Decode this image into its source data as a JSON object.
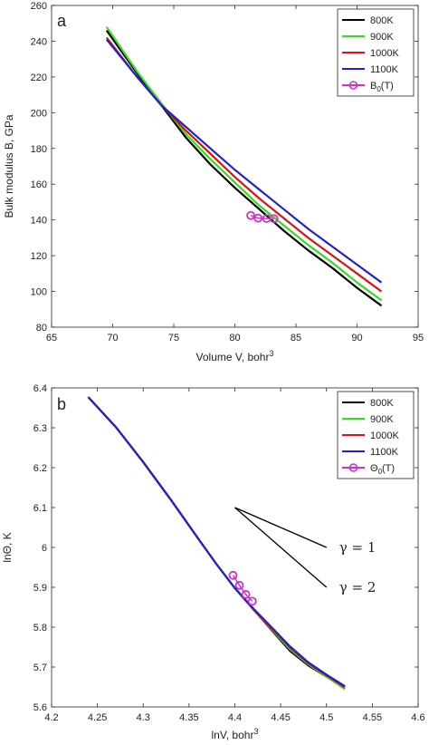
{
  "chart_data": [
    {
      "panel": "a",
      "type": "line",
      "xlabel": "Volume V, bohr",
      "xlabel_sup": "3",
      "ylabel": "Bulk modulus B, GPa",
      "xlim": [
        65,
        95
      ],
      "ylim": [
        80,
        260
      ],
      "xticks": [
        65,
        70,
        75,
        80,
        85,
        90,
        95
      ],
      "yticks": [
        80,
        100,
        120,
        140,
        160,
        180,
        200,
        220,
        240,
        260
      ],
      "grid": false,
      "legend_position": "top-right",
      "series": [
        {
          "name": "800K",
          "color": "#000000",
          "x": [
            69.5,
            72,
            74,
            76,
            78,
            80,
            82,
            84,
            86,
            88,
            90,
            92
          ],
          "y": [
            246,
            222,
            204,
            186,
            171,
            158,
            146,
            134,
            123,
            113,
            102,
            92
          ]
        },
        {
          "name": "900K",
          "color": "#33dd22",
          "x": [
            69.5,
            72,
            74,
            76,
            78,
            80,
            82,
            84,
            86,
            88,
            90,
            92
          ],
          "y": [
            248,
            223,
            205,
            188,
            174,
            161,
            148,
            137,
            126,
            116,
            105,
            95
          ]
        },
        {
          "name": "1000K",
          "color": "#dd1111",
          "x": [
            69.5,
            72,
            74,
            76,
            78,
            80,
            82,
            84,
            86,
            88,
            90,
            92
          ],
          "y": [
            242,
            220,
            204,
            190,
            177,
            164,
            152,
            141,
            130,
            120,
            110,
            100
          ]
        },
        {
          "name": "1100K",
          "color": "#2222cc",
          "x": [
            69.5,
            72,
            74,
            76,
            78,
            80,
            82,
            84,
            86,
            88,
            90,
            92
          ],
          "y": [
            241,
            220,
            204,
            192,
            180,
            168,
            157,
            146,
            135,
            125,
            115,
            105
          ]
        },
        {
          "name": "B",
          "name_sub": "0",
          "name_suffix": "(T)",
          "color": "#cc33cc",
          "marker": "circle",
          "x": [
            81.3,
            81.9,
            82.6,
            83.2
          ],
          "y": [
            142.5,
            141.0,
            140.8,
            140.7
          ]
        }
      ]
    },
    {
      "panel": "b",
      "type": "line",
      "xlabel": "lnV, bohr",
      "xlabel_sup": "3",
      "ylabel": "lnΘ, K",
      "xlim": [
        4.2,
        4.6
      ],
      "ylim": [
        5.6,
        6.4
      ],
      "xticks": [
        "4.2",
        "4.25",
        "4.3",
        "4.35",
        "4.4",
        "4.45",
        "4.5",
        "4.55",
        "4.6"
      ],
      "yticks": [
        "5.6",
        "5.7",
        "5.8",
        "5.9",
        "6",
        "6.1",
        "6.2",
        "6.3",
        "6.4"
      ],
      "grid": false,
      "legend_position": "top-right",
      "series": [
        {
          "name": "800K",
          "color": "#000000",
          "x": [
            4.24,
            4.27,
            4.3,
            4.33,
            4.36,
            4.38,
            4.4,
            4.42,
            4.44,
            4.46,
            4.48,
            4.5,
            4.52
          ],
          "y": [
            6.377,
            6.302,
            6.214,
            6.12,
            6.022,
            5.958,
            5.898,
            5.845,
            5.793,
            5.741,
            5.704,
            5.676,
            5.648
          ]
        },
        {
          "name": "900K",
          "color": "#33dd22",
          "x": [
            4.24,
            4.27,
            4.3,
            4.33,
            4.36,
            4.38,
            4.4,
            4.42,
            4.44,
            4.46,
            4.48,
            4.5,
            4.52
          ],
          "y": [
            6.377,
            6.302,
            6.214,
            6.12,
            6.022,
            5.958,
            5.898,
            5.845,
            5.795,
            5.745,
            5.707,
            5.676,
            5.645
          ]
        },
        {
          "name": "1000K",
          "color": "#dd1111",
          "x": [
            4.24,
            4.27,
            4.3,
            4.33,
            4.36,
            4.38,
            4.4,
            4.42,
            4.44,
            4.46,
            4.48,
            4.5,
            4.52
          ],
          "y": [
            6.377,
            6.302,
            6.214,
            6.12,
            6.022,
            5.958,
            5.898,
            5.845,
            5.797,
            5.749,
            5.71,
            5.679,
            5.649
          ]
        },
        {
          "name": "1100K",
          "color": "#2222cc",
          "x": [
            4.24,
            4.27,
            4.3,
            4.33,
            4.36,
            4.38,
            4.4,
            4.42,
            4.44,
            4.46,
            4.48,
            4.5,
            4.52
          ],
          "y": [
            6.377,
            6.302,
            6.214,
            6.12,
            6.022,
            5.958,
            5.898,
            5.847,
            5.8,
            5.752,
            5.712,
            5.681,
            5.652
          ]
        },
        {
          "name": "Θ",
          "name_sub": "0",
          "name_suffix": "(T)",
          "color": "#cc33cc",
          "marker": "circle",
          "x": [
            4.398,
            4.405,
            4.412,
            4.419
          ],
          "y": [
            5.93,
            5.905,
            5.882,
            5.865
          ]
        }
      ],
      "annotations": [
        {
          "label": "γ = 1",
          "line_from": [
            4.4,
            6.1
          ],
          "line_to": [
            4.5,
            6.0
          ]
        },
        {
          "label": "γ = 2",
          "line_from": [
            4.4,
            6.1
          ],
          "line_to": [
            4.5,
            5.9
          ]
        }
      ]
    }
  ]
}
